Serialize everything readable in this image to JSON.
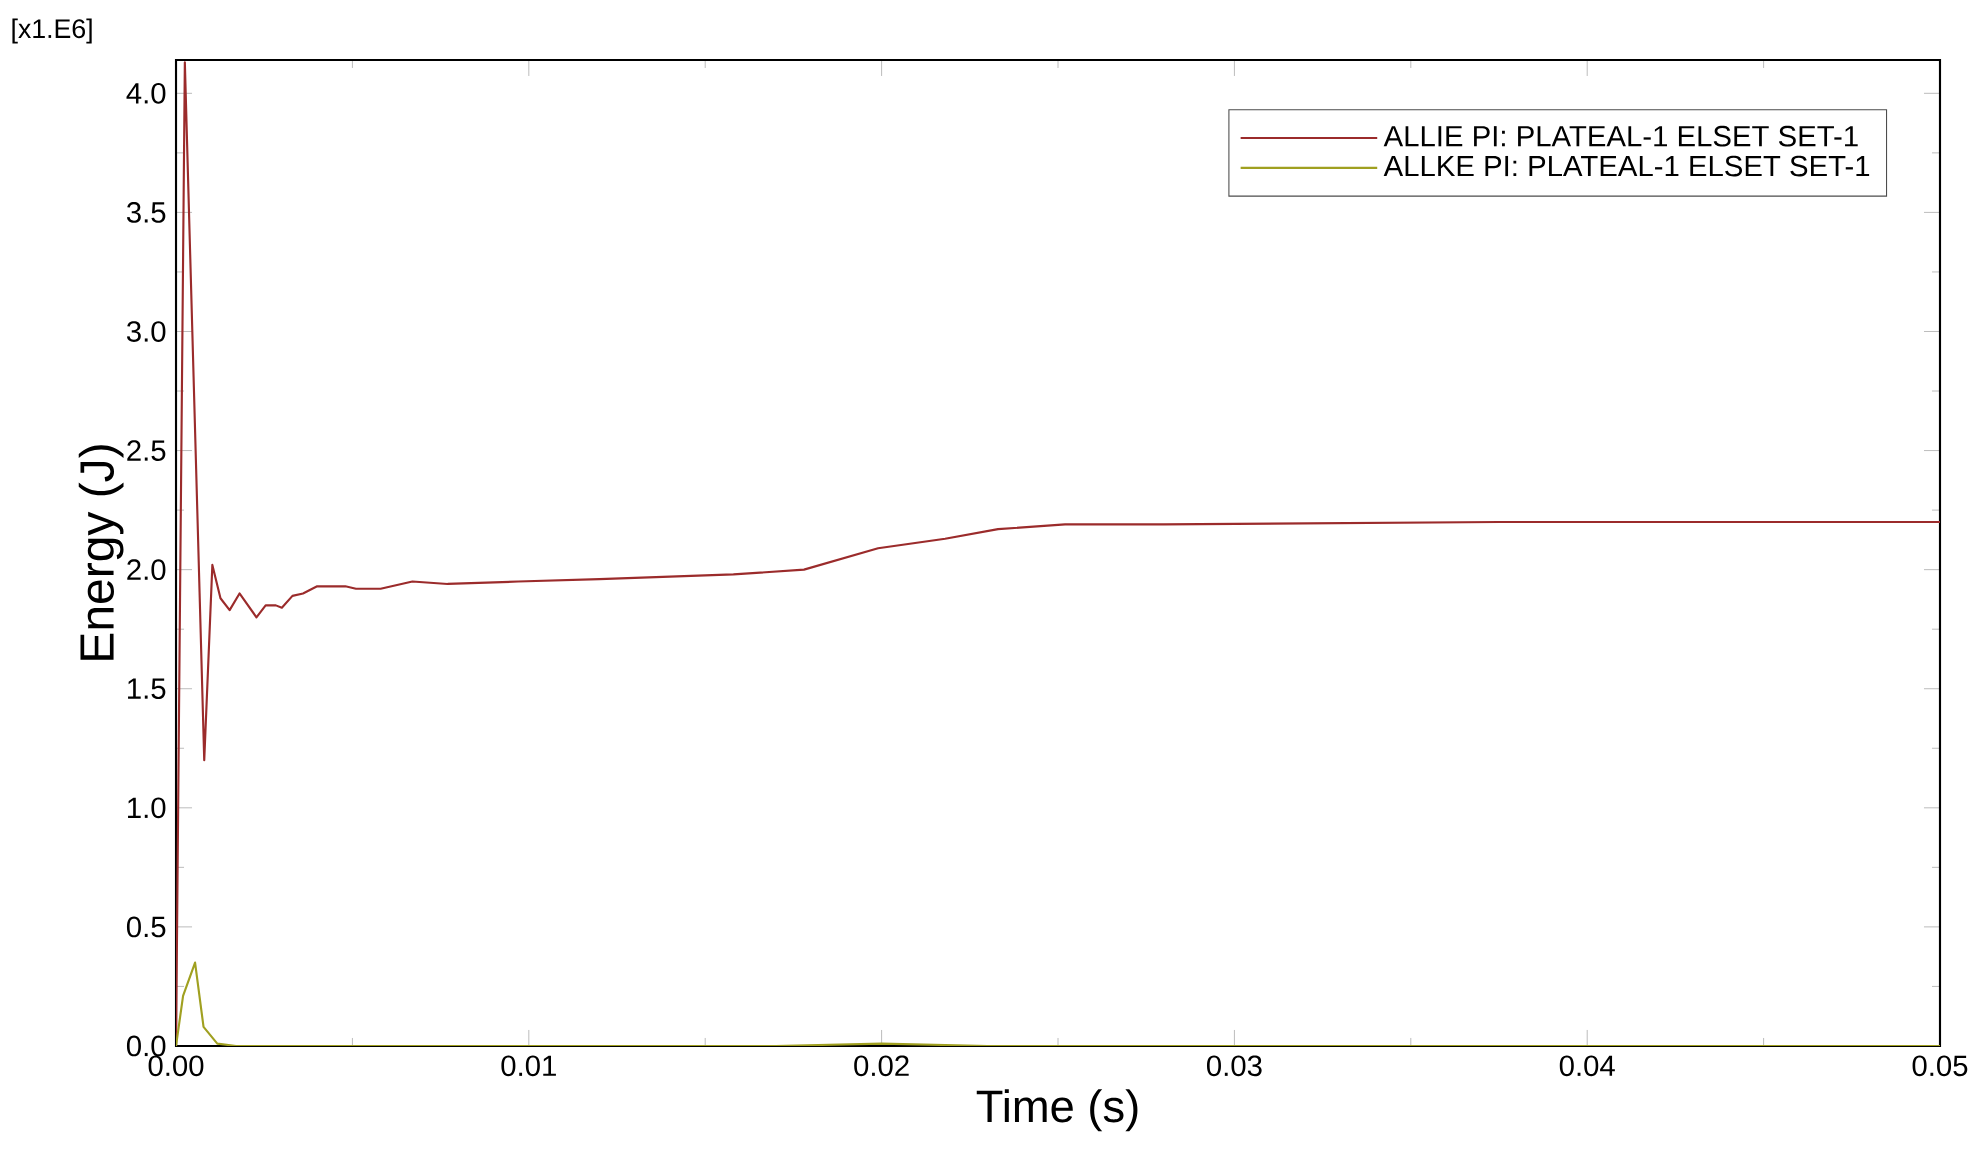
{
  "chart_data": {
    "type": "line",
    "xlabel": "Time (s)",
    "ylabel": "Energy (J)",
    "annotations": [
      "[x1.E6]"
    ],
    "xlim": [
      0,
      0.05
    ],
    "ylim": [
      0,
      4.14
    ],
    "xticks": [
      {
        "value": 0,
        "label": "0.00"
      },
      {
        "value": 0.01,
        "label": "0.01"
      },
      {
        "value": 0.02,
        "label": "0.02"
      },
      {
        "value": 0.03,
        "label": "0.03"
      },
      {
        "value": 0.04,
        "label": "0.04"
      },
      {
        "value": 0.05,
        "label": "0.05"
      }
    ],
    "yticks": [
      {
        "value": 0,
        "label": "0.0"
      },
      {
        "value": 0.5,
        "label": "0.5"
      },
      {
        "value": 1,
        "label": "1.0"
      },
      {
        "value": 1.5,
        "label": "1.5"
      },
      {
        "value": 2,
        "label": "2.0"
      },
      {
        "value": 2.5,
        "label": "2.5"
      },
      {
        "value": 3,
        "label": "3.0"
      },
      {
        "value": 3.5,
        "label": "3.5"
      },
      {
        "value": 4,
        "label": "4.0"
      }
    ],
    "legend": "top right",
    "grid": false,
    "marker": "none",
    "line_style": "solid",
    "series": [
      {
        "name": "ALLIE PI: PLATEAL-1 ELSET SET-1",
        "color": "#9b2b2b",
        "x": [
          0,
          0.00025,
          0.0008,
          0.00103,
          0.00126,
          0.00152,
          0.0018,
          0.00228,
          0.00254,
          0.00283,
          0.003,
          0.0033,
          0.0036,
          0.004,
          0.0048,
          0.0051,
          0.0058,
          0.0067,
          0.0077,
          0.0097,
          0.012,
          0.0158,
          0.0178,
          0.0199,
          0.0218,
          0.0233,
          0.0252,
          0.028,
          0.0375,
          0.05
        ],
        "values": [
          0,
          4.13,
          1.2,
          2.02,
          1.88,
          1.83,
          1.9,
          1.8,
          1.85,
          1.85,
          1.84,
          1.89,
          1.9,
          1.93,
          1.93,
          1.92,
          1.92,
          1.95,
          1.94,
          1.95,
          1.96,
          1.98,
          2.0,
          2.09,
          2.13,
          2.17,
          2.19,
          2.19,
          2.2,
          2.2
        ]
      },
      {
        "name": "ALLKE PI: PLATEAL-1 ELSET SET-1",
        "color": "#a0a020",
        "x": [
          0,
          0.0002,
          0.00054,
          0.00078,
          0.00117,
          0.0017,
          0.017,
          0.02,
          0.023,
          0.05
        ],
        "values": [
          0,
          0.21,
          0.35,
          0.08,
          0.01,
          0,
          0,
          0.01,
          0,
          0
        ]
      }
    ]
  }
}
